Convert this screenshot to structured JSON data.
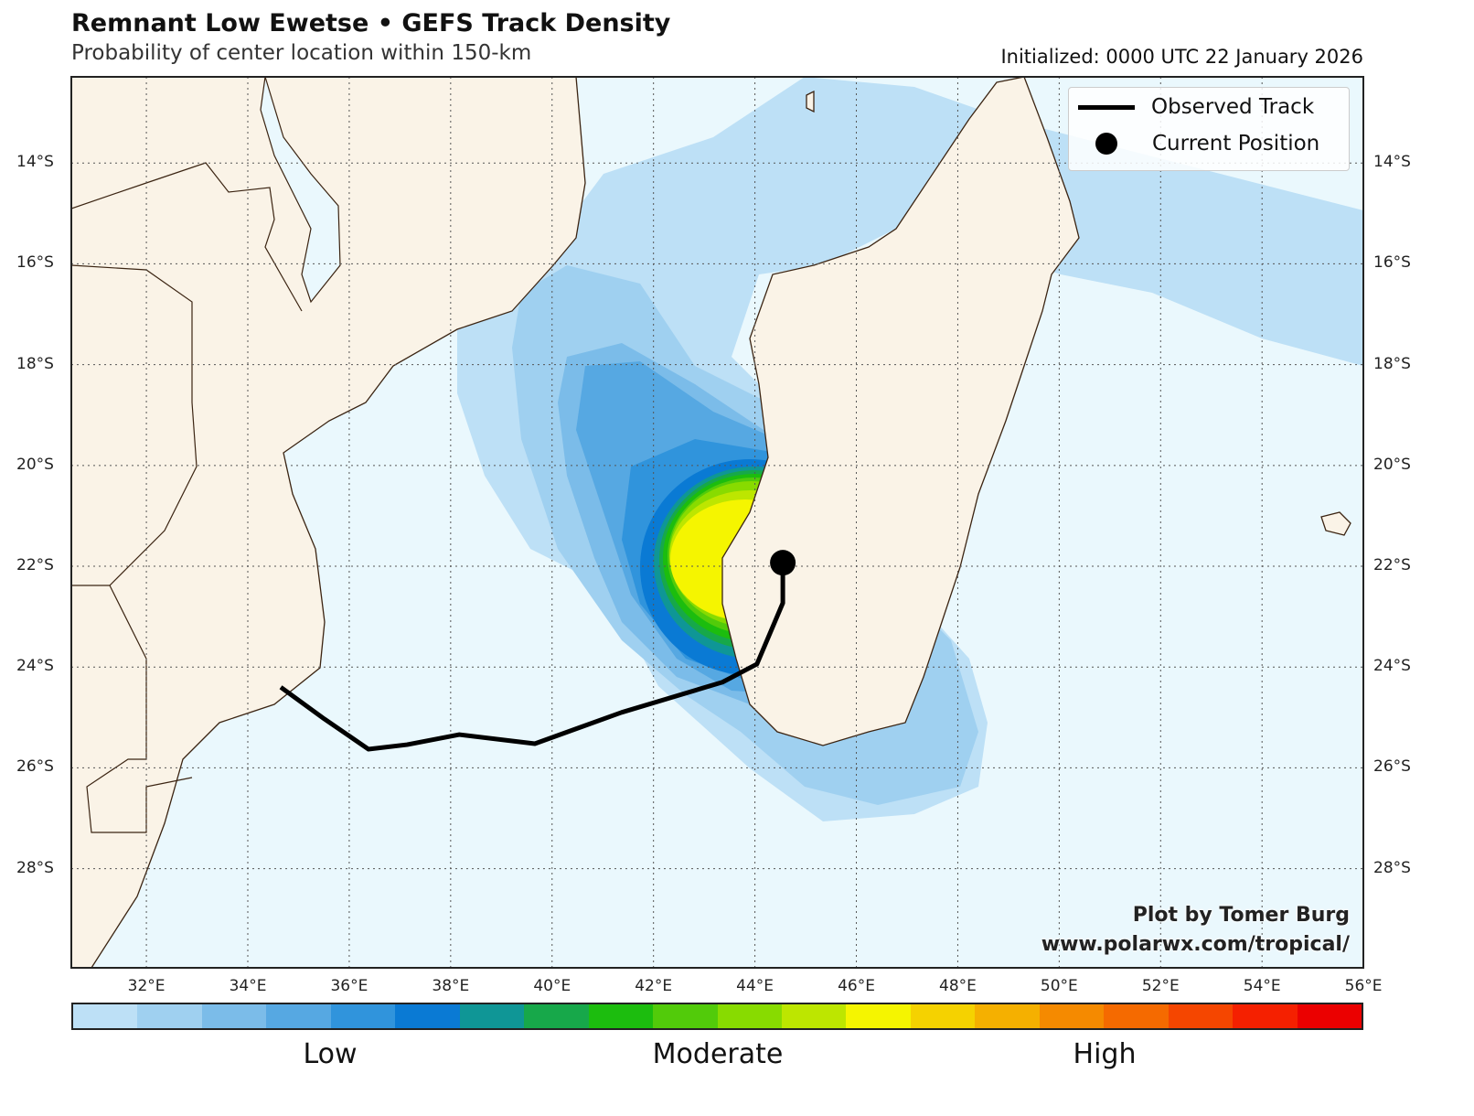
{
  "title": "Remnant Low Ewetse • GEFS Track Density",
  "subtitle": "Probability of center location within 150-km",
  "initialized": "Initialized: 0000 UTC 22 January 2026",
  "legend": {
    "track_label": "Observed Track",
    "position_label": "Current Position"
  },
  "credit": {
    "line1": "Plot by Tomer Burg",
    "line2": "www.polarwx.com/tropical/"
  },
  "lat_labels": [
    "14°S",
    "16°S",
    "18°S",
    "20°S",
    "22°S",
    "24°S",
    "26°S",
    "28°S"
  ],
  "lon_labels": [
    "32°E",
    "34°E",
    "36°E",
    "38°E",
    "40°E",
    "42°E",
    "44°E",
    "46°E",
    "48°E",
    "50°E",
    "52°E",
    "54°E",
    "56°E"
  ],
  "colorbar": {
    "labels": [
      "Low",
      "Moderate",
      "High"
    ],
    "colors": [
      "#bde0f6",
      "#9fd0f0",
      "#7bbce9",
      "#56a8e2",
      "#3094dc",
      "#0a7ad4",
      "#0f9696",
      "#17a84a",
      "#1cbd0e",
      "#52cb0a",
      "#88db00",
      "#bde600",
      "#f5f500",
      "#f5d200",
      "#f5b000",
      "#f58a00",
      "#f56a00",
      "#f54600",
      "#f52000",
      "#eb0000"
    ]
  },
  "colors": {
    "ocean": "#eaf8fd",
    "land": "#faf3e7",
    "coast": "#3b2412",
    "track": "#000000"
  },
  "track": [
    [
      34.65,
      24.4
    ],
    [
      35.51,
      25.03
    ],
    [
      36.38,
      25.63
    ],
    [
      37.14,
      25.54
    ],
    [
      38.17,
      25.34
    ],
    [
      39.66,
      25.52
    ],
    [
      41.37,
      24.9
    ],
    [
      43.36,
      24.3
    ],
    [
      44.04,
      23.94
    ],
    [
      44.55,
      22.73
    ],
    [
      44.55,
      21.93
    ]
  ],
  "current_position": [
    44.55,
    21.93
  ]
}
